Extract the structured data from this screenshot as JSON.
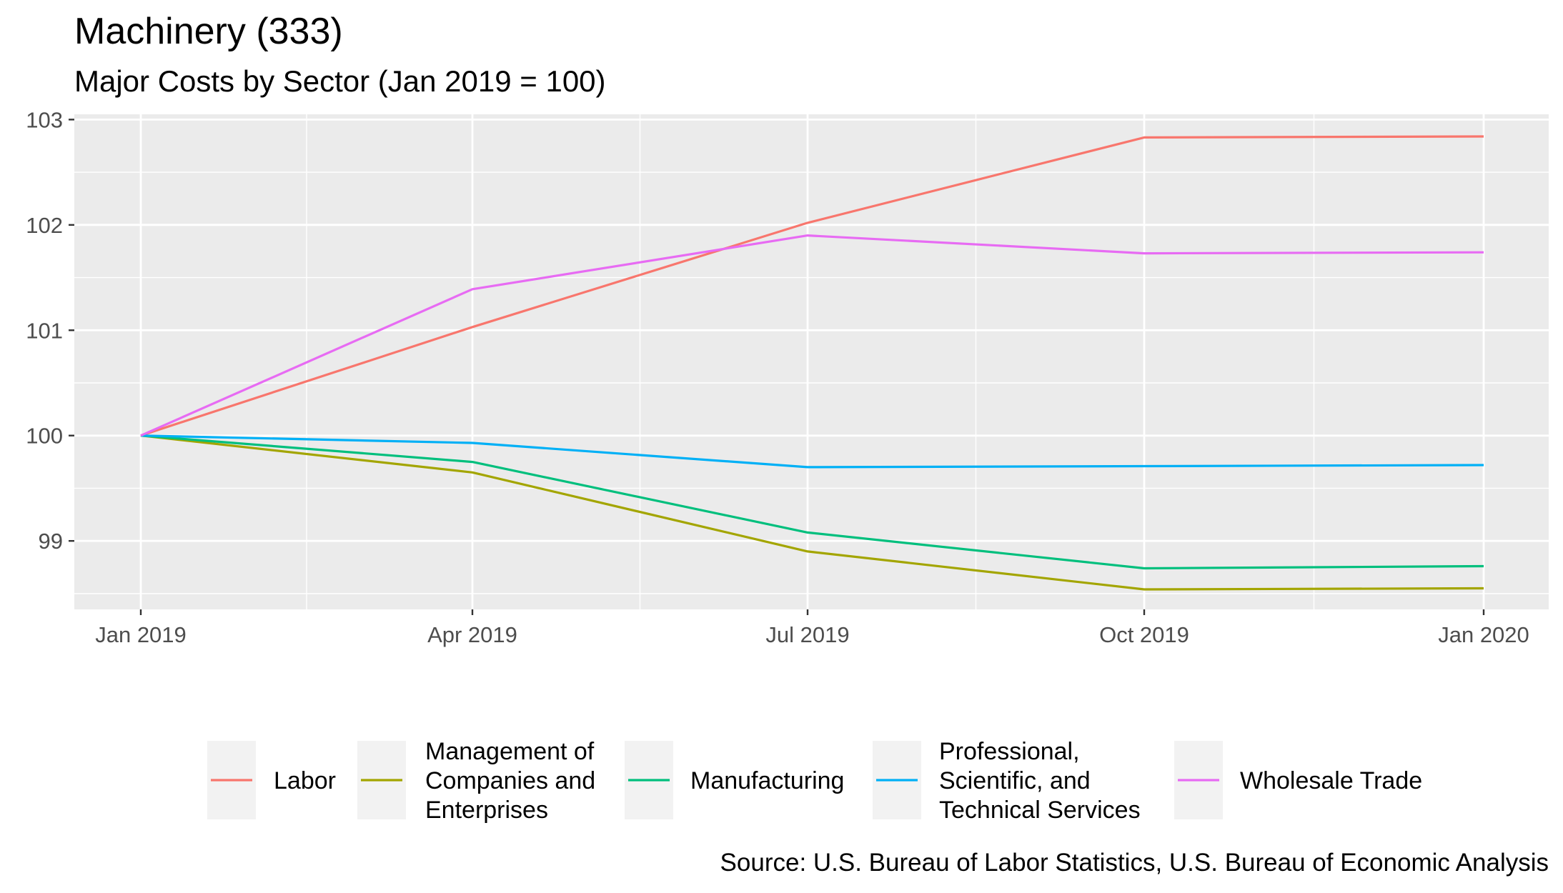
{
  "chart_data": {
    "type": "line",
    "title": "Machinery (333)",
    "subtitle": "Major Costs by Sector (Jan 2019 = 100)",
    "caption": "Source: U.S. Bureau of Labor Statistics, U.S. Bureau of Economic Analysis",
    "x": [
      "Jan 2019",
      "Apr 2019",
      "Jul 2019",
      "Oct 2019",
      "Jan 2020"
    ],
    "x_tick_labels": [
      "Jan 2019",
      "Apr 2019",
      "Jul 2019",
      "Oct 2019",
      "Jan 2020"
    ],
    "y_tick_labels": [
      "99",
      "100",
      "101",
      "102",
      "103"
    ],
    "ylim": [
      98.35,
      103.05
    ],
    "grid": true,
    "legend_position": "bottom",
    "series": [
      {
        "name": "Labor",
        "color": "#F8766D",
        "values": [
          100.0,
          101.03,
          102.02,
          102.83,
          102.84
        ]
      },
      {
        "name": "Management of Companies and Enterprises",
        "legend_lines": [
          "Management of",
          "Companies and",
          "Enterprises"
        ],
        "color": "#A3A500",
        "values": [
          100.0,
          99.65,
          98.9,
          98.54,
          98.55
        ]
      },
      {
        "name": "Manufacturing",
        "color": "#00BF7D",
        "values": [
          100.0,
          99.75,
          99.08,
          98.74,
          98.76
        ]
      },
      {
        "name": "Professional, Scientific, and Technical Services",
        "legend_lines": [
          "Professional,",
          "Scientific, and",
          "Technical Services"
        ],
        "color": "#00B0F6",
        "values": [
          100.0,
          99.93,
          99.7,
          99.71,
          99.72
        ]
      },
      {
        "name": "Wholesale Trade",
        "color": "#E76BF3",
        "values": [
          100.0,
          101.39,
          101.9,
          101.73,
          101.74
        ]
      }
    ]
  }
}
